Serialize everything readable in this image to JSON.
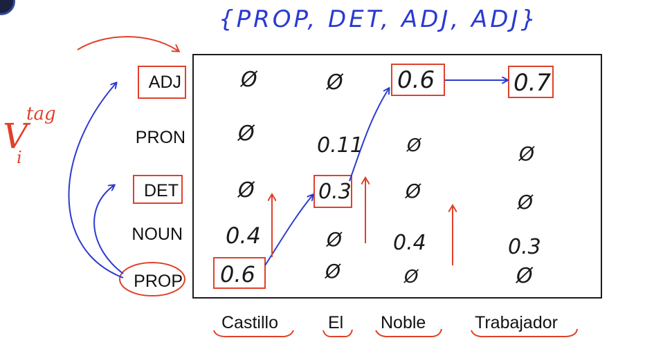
{
  "sequence_annotation": "{PROP, DET, ADJ, ADJ}",
  "viterbi_symbol": {
    "base": "V",
    "subscript": "i",
    "superscript": "tag"
  },
  "tags": [
    "ADJ",
    "PRON",
    "DET",
    "NOUN",
    "PROP"
  ],
  "words": [
    "Castillo",
    "El",
    "Noble",
    "Trabajador"
  ],
  "cells": {
    "castillo": {
      "adj": "Ø",
      "pron": "Ø",
      "det": "Ø",
      "noun": "0.4",
      "prop": "0.6"
    },
    "el": {
      "adj": "Ø",
      "pron": "0.11",
      "det": "0.3",
      "noun": "Ø",
      "prop": "Ø"
    },
    "noble": {
      "adj": "0.6",
      "pron": "Ø",
      "det": "Ø",
      "noun": "0.4",
      "prop": "Ø"
    },
    "trabajador": {
      "adj": "0.7",
      "pron": "Ø",
      "det": "Ø",
      "noun": "0.3",
      "prop": "Ø"
    }
  },
  "colors": {
    "ink": "#1a1a1a",
    "blue": "#2a3ad0",
    "red": "#e0402a"
  }
}
